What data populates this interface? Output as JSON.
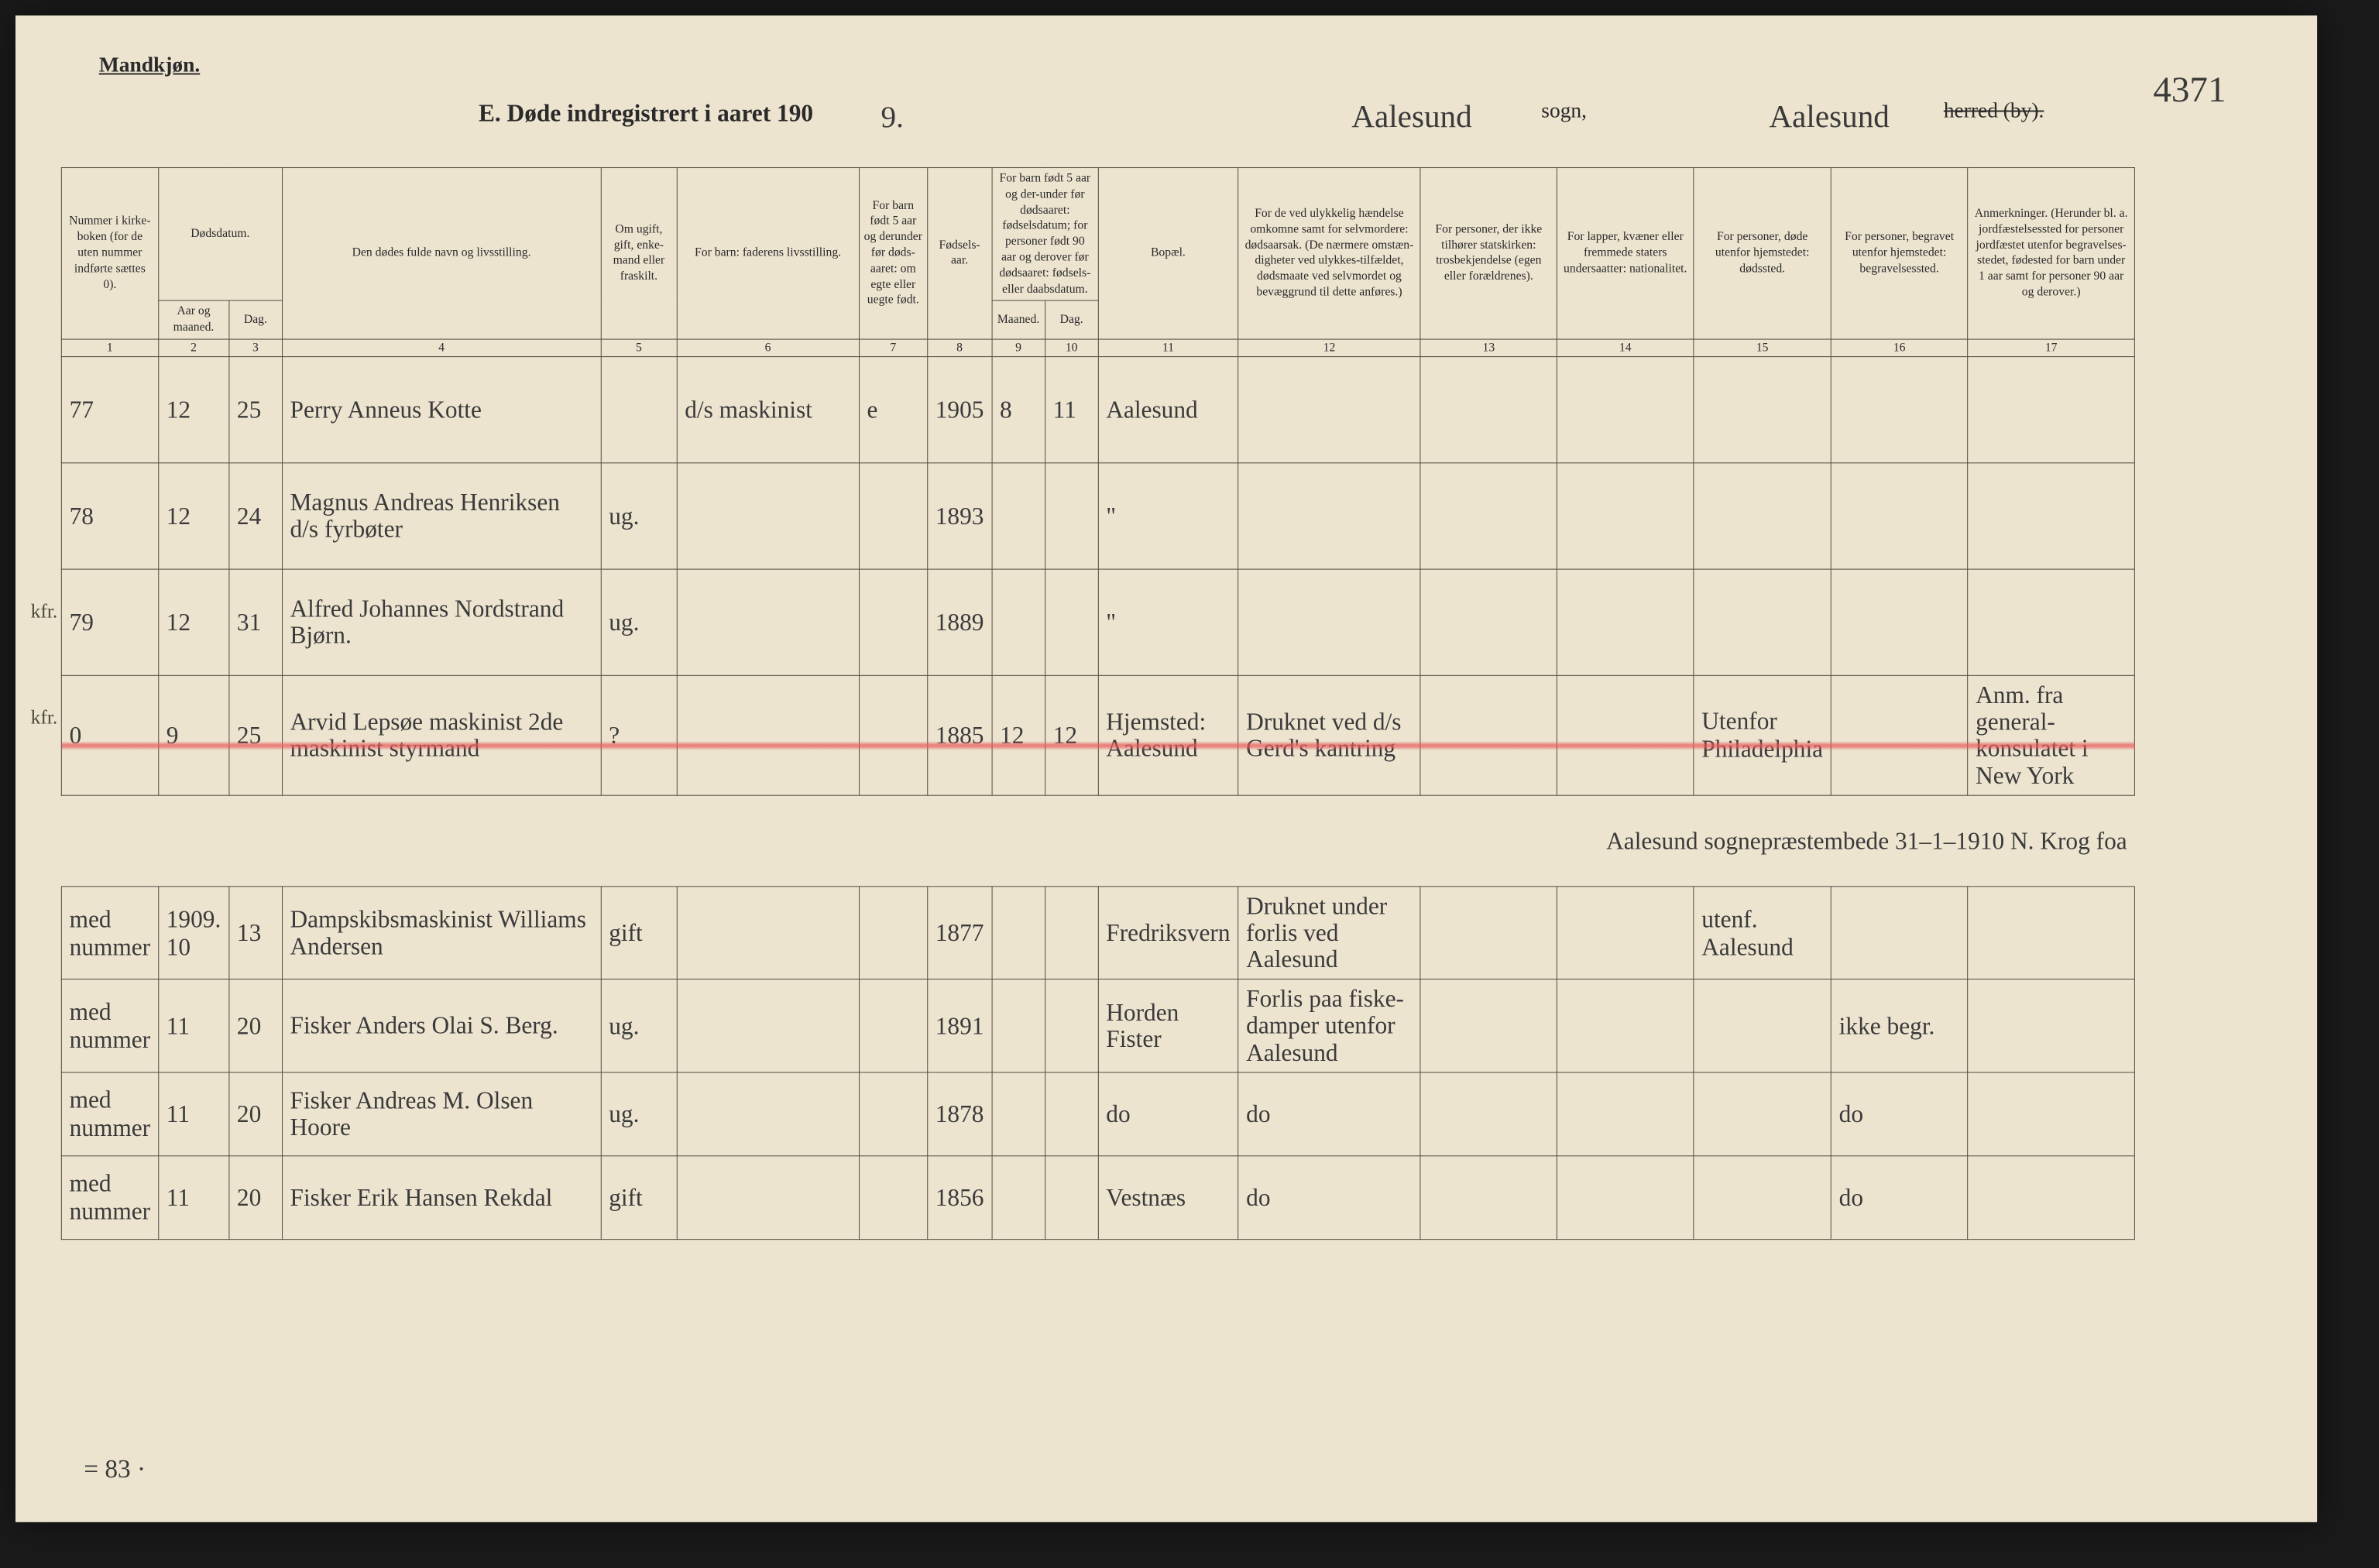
{
  "header": {
    "gender": "Mandkjøn.",
    "title_prefix": "E.  Døde indregistrert i aaret 190",
    "year_suffix": "9.",
    "sogn_value": "Aalesund",
    "sogn_label": "sogn,",
    "herred_value": "Aalesund",
    "herred_label": "herred (by).",
    "page_number": "4371"
  },
  "columns": {
    "c1": "Nummer i kirke-boken (for de uten nummer indførte sættes 0).",
    "c2_group": "Dødsdatum.",
    "c2": "Aar og maaned.",
    "c3": "Dag.",
    "c4": "Den dødes fulde navn og livsstilling.",
    "c5": "Om ugift, gift, enke-mand eller fraskilt.",
    "c6": "For barn: faderens livsstilling.",
    "c7": "For barn født 5 aar og derunder før døds-aaret: om egte eller uegte født.",
    "c8": "Fødsels-aar.",
    "c9_group": "For barn født 5 aar og der-under før dødsaaret: fødselsdatum; for personer født 90 aar og derover før dødsaaret: fødsels- eller daabsdatum.",
    "c9": "Maaned.",
    "c10": "Dag.",
    "c11": "Bopæl.",
    "c12": "For de ved ulykkelig hændelse omkomne samt for selvmordere: dødsaarsak. (De nærmere omstæn-digheter ved ulykkes-tilfældet, dødsmaate ved selvmordet og bevæggrund til dette anføres.)",
    "c13": "For personer, der ikke tilhører statskirken: trosbekjendelse (egen eller forældrenes).",
    "c14": "For lapper, kvæner eller fremmede staters undersaatter: nationalitet.",
    "c15": "For personer, døde utenfor hjemstedet: dødssted.",
    "c16": "For personer, begravet utenfor hjemstedet: begravelsessted.",
    "c17": "Anmerkninger. (Herunder bl. a. jordfæstelsessted for personer jordfæstet utenfor begravelses-stedet, fødested for barn under 1 aar samt for personer 90 aar og derover.)"
  },
  "colnums": [
    "1",
    "2",
    "3",
    "4",
    "5",
    "6",
    "7",
    "8",
    "9",
    "10",
    "11",
    "12",
    "13",
    "14",
    "15",
    "16",
    "17"
  ],
  "rows": [
    {
      "num": "77",
      "month": "12",
      "day": "25",
      "name": "Perry Anneus Kotte",
      "status": "",
      "father": "d/s maskinist",
      "legit": "e",
      "birthyear": "1905",
      "bmonth": "8",
      "bday": "11",
      "residence": "Aalesund",
      "cause": "",
      "c13": "",
      "c14": "",
      "c15": "",
      "c16": "",
      "c17": ""
    },
    {
      "num": "78",
      "month": "12",
      "day": "24",
      "name": "Magnus Andreas Henriksen d/s fyrbøter",
      "status": "ug.",
      "father": "",
      "legit": "",
      "birthyear": "1893",
      "bmonth": "",
      "bday": "",
      "residence": "\"",
      "cause": "",
      "c13": "",
      "c14": "",
      "c15": "",
      "c16": "",
      "c17": ""
    },
    {
      "num": "79",
      "month": "12",
      "day": "31",
      "name": "Alfred Johannes Nordstrand Bjørn.",
      "status": "ug.",
      "father": "",
      "legit": "",
      "birthyear": "1889",
      "bmonth": "",
      "bday": "",
      "residence": "\"",
      "cause": "",
      "c13": "",
      "c14": "",
      "c15": "",
      "c16": "",
      "c17": "",
      "margin": "kfr."
    },
    {
      "num": "0",
      "month": "9",
      "day": "25",
      "name": "Arvid Lepsøe   maskinist 2de maskinist styrmand",
      "status": "?",
      "father": "",
      "legit": "",
      "birthyear": "1885",
      "bmonth": "12",
      "bday": "12",
      "residence": "Hjemsted: Aalesund",
      "cause": "Druknet ved d/s Gerd's kantring",
      "c13": "",
      "c14": "",
      "c15": "Utenfor Philadelphia",
      "c16": "",
      "c17": "Anm. fra general-konsulatet i New York",
      "margin": "kfr.",
      "redline": true
    }
  ],
  "signature": "Aalesund sognepræstembede 31–1–1910   N. Krog foa",
  "rows2": [
    {
      "num": "med nummer",
      "month": "1909. 10",
      "day": "13",
      "name": "Dampskibsmaskinist Williams Andersen",
      "status": "gift",
      "father": "",
      "legit": "",
      "birthyear": "1877",
      "bmonth": "",
      "bday": "",
      "residence": "Fredriksvern",
      "cause": "Druknet under forlis ved Aalesund",
      "c13": "",
      "c14": "",
      "c15": "utenf. Aalesund",
      "c16": "",
      "c17": ""
    },
    {
      "num": "med nummer",
      "month": "11",
      "day": "20",
      "name": "Fisker Anders Olai S. Berg.",
      "status": "ug.",
      "father": "",
      "legit": "",
      "birthyear": "1891",
      "bmonth": "",
      "bday": "",
      "residence": "Horden Fister",
      "cause": "Forlis paa fiske-damper utenfor Aalesund",
      "c13": "",
      "c14": "",
      "c15": "",
      "c16": "ikke begr.",
      "c17": ""
    },
    {
      "num": "med nummer",
      "month": "11",
      "day": "20",
      "name": "Fisker Andreas M. Olsen Hoore",
      "status": "ug.",
      "father": "",
      "legit": "",
      "birthyear": "1878",
      "bmonth": "",
      "bday": "",
      "residence": "do",
      "cause": "do",
      "c13": "",
      "c14": "",
      "c15": "",
      "c16": "do",
      "c17": ""
    },
    {
      "num": "med nummer",
      "month": "11",
      "day": "20",
      "name": "Fisker Erik Hansen Rekdal",
      "status": "gift",
      "father": "",
      "legit": "",
      "birthyear": "1856",
      "bmonth": "",
      "bday": "",
      "residence": "Vestnæs",
      "cause": "do",
      "c13": "",
      "c14": "",
      "c15": "",
      "c16": "do",
      "c17": ""
    }
  ],
  "footer": "= 83 ·"
}
